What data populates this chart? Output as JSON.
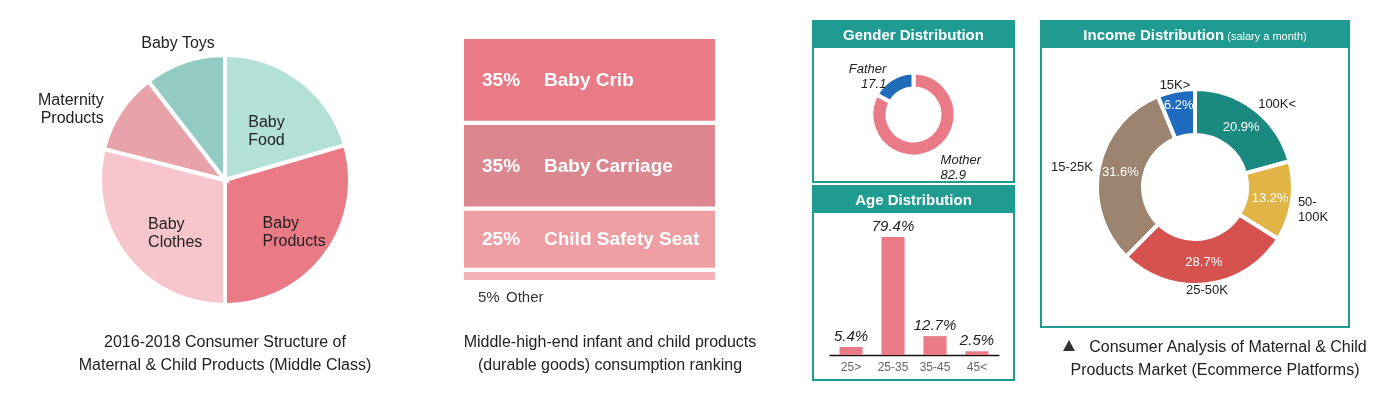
{
  "chart_data": [
    {
      "type": "pie",
      "title": "2016-2018 Consumer Structure of Maternal & Child Products (Middle Class)",
      "categories": [
        "Baby Food",
        "Baby Products",
        "Baby Clothes",
        "Maternity Products",
        "Baby Toys"
      ],
      "values": [
        20.5,
        29.5,
        29,
        10.5,
        10.5
      ],
      "colors": [
        "#b3e0d7",
        "#e97a86",
        "#f6c6cc",
        "#e8a3aa",
        "#92cbc4"
      ]
    },
    {
      "type": "bar",
      "title": "Middle-high-end infant and child products (durable goods) consumption ranking",
      "categories": [
        null
      ],
      "stacked": true,
      "series": [
        {
          "name": "Other",
          "color": "#f4b3b7",
          "values": [
            5
          ],
          "value_labels": [
            "5%"
          ]
        },
        {
          "name": "Child Safety Seat",
          "color": "#ef9ea3",
          "values": [
            25
          ],
          "value_labels": [
            "25%"
          ]
        },
        {
          "name": "Baby Carriage",
          "color": "#dc8790",
          "values": [
            35
          ],
          "value_labels": [
            "35%"
          ]
        },
        {
          "name": "Baby Crib",
          "color": "#e97a86",
          "values": [
            35
          ],
          "value_labels": [
            "35%"
          ]
        }
      ]
    },
    {
      "type": "donut",
      "title": "Gender Distribution",
      "categories": [
        "Mother",
        "Father"
      ],
      "values": [
        82.9,
        17.1
      ],
      "colors": [
        "#e97a86",
        "#1f6bb8"
      ],
      "data_labels": true
    },
    {
      "type": "bar",
      "title": "Age Distribution",
      "categories": [
        "25>",
        "25-35",
        "35-45",
        "45<"
      ],
      "values": [
        5.4,
        79.4,
        12.7,
        2.5
      ],
      "color": "#e97a86",
      "value_labels": [
        "5.4%",
        "79.4%",
        "12.7%",
        "2.5%"
      ]
    },
    {
      "type": "donut",
      "title": "Income Distribution",
      "subtitle": "(salary a month)",
      "categories": [
        "100K<",
        "50-100K",
        "25-50K",
        "15-25K",
        "15K>"
      ],
      "values": [
        20.9,
        13.2,
        28.7,
        31.6,
        6.2
      ],
      "colors": [
        "#1a8a80",
        "#e0b445",
        "#d6524e",
        "#9c8470",
        "#1f6bc0"
      ],
      "value_labels": [
        "20.9%",
        "13.2%",
        "28.7%",
        "31.6%",
        "6.2%"
      ],
      "annotations": [
        "Consumer Analysis of Maternal & Child Products Market (Ecommerce Platforms)"
      ]
    }
  ]
}
